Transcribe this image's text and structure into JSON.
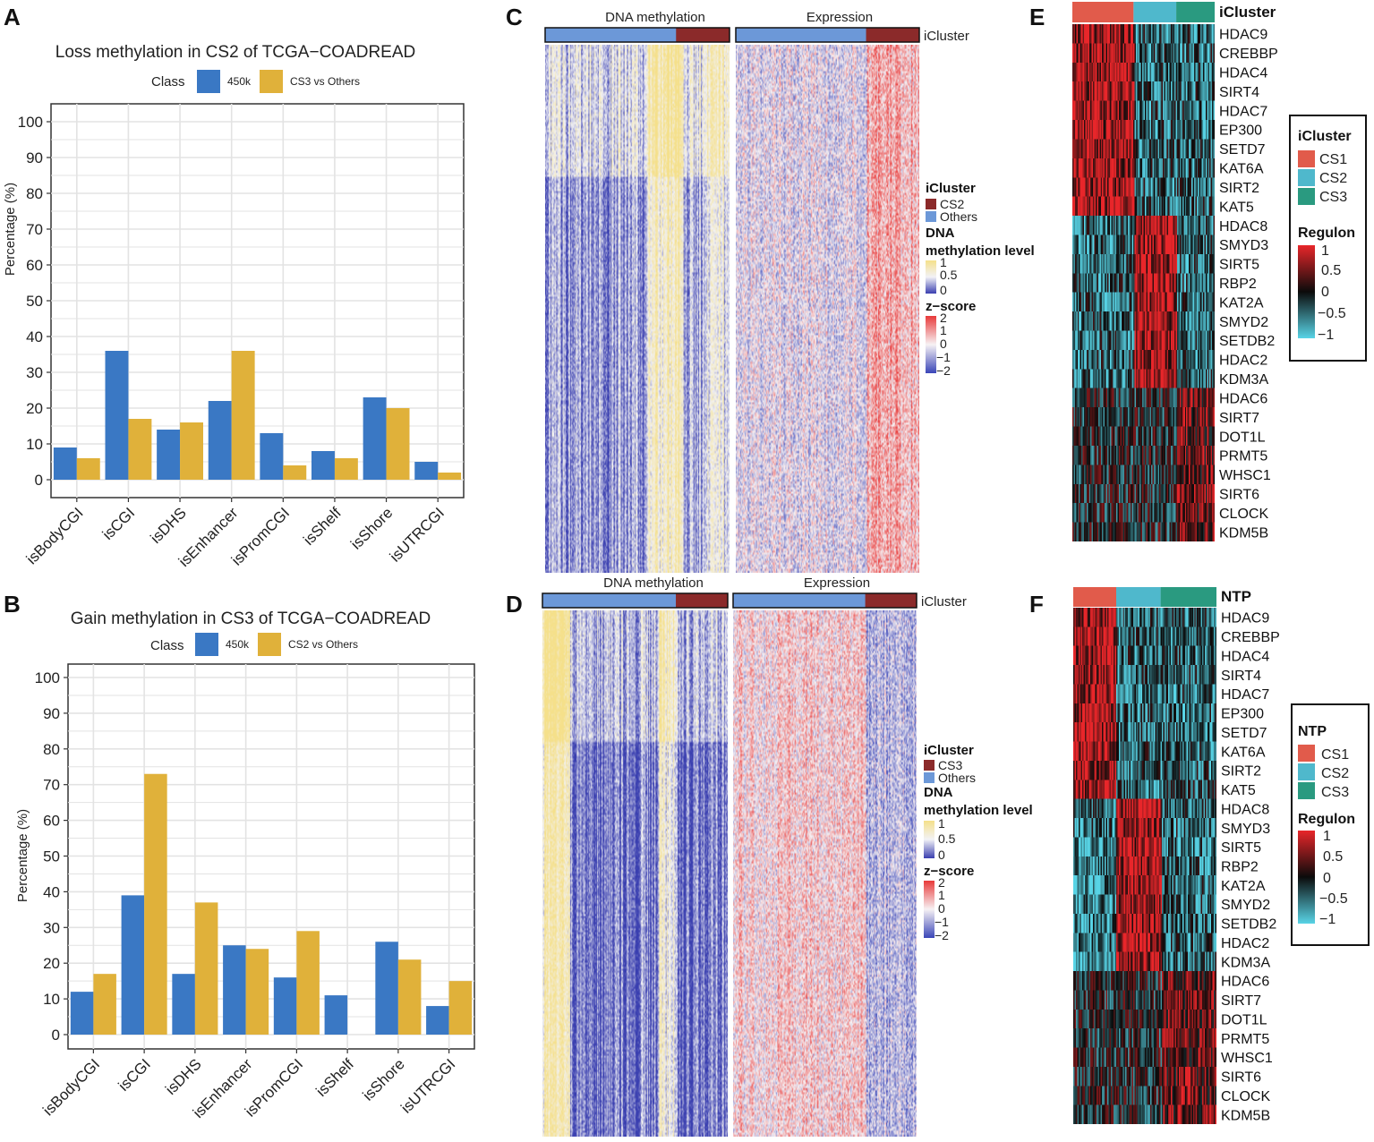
{
  "panels": {
    "A": "A",
    "B": "B",
    "C": "C",
    "D": "D",
    "E": "E",
    "F": "F"
  },
  "chart_data": [
    {
      "id": "A",
      "type": "bar",
      "title": "Loss methylation in CS2 of TCGA−COADREAD",
      "legend_title": "Class",
      "categories": [
        "isBodyCGI",
        "isCGI",
        "isDHS",
        "isEnhancer",
        "isPromCGI",
        "isShelf",
        "isShore",
        "isUTRCGI"
      ],
      "series": [
        {
          "name": "450k",
          "color": "#3a78c4",
          "values": [
            9,
            36,
            14,
            22,
            13,
            8,
            23,
            5
          ]
        },
        {
          "name": "CS3 vs Others",
          "color": "#e0b13a",
          "values": [
            6,
            17,
            16,
            36,
            4,
            6,
            20,
            2
          ]
        }
      ],
      "ylabel": "Percentage (%)",
      "yticks": [
        "0",
        "10",
        "20",
        "30",
        "40",
        "50",
        "60",
        "70",
        "80",
        "90",
        "100"
      ],
      "ylim": [
        0,
        100
      ],
      "grid": true
    },
    {
      "id": "B",
      "type": "bar",
      "title": "Gain methylation in CS3 of TCGA−COADREAD",
      "legend_title": "Class",
      "categories": [
        "isBodyCGI",
        "isCGI",
        "isDHS",
        "isEnhancer",
        "isPromCGI",
        "isShelf",
        "isShore",
        "isUTRCGI"
      ],
      "series": [
        {
          "name": "450k",
          "color": "#3a78c4",
          "values": [
            12,
            39,
            17,
            25,
            16,
            11,
            26,
            8
          ]
        },
        {
          "name": "CS2 vs Others",
          "color": "#e0b13a",
          "values": [
            17,
            73,
            37,
            24,
            29,
            0,
            21,
            15
          ]
        }
      ],
      "ylabel": "Percentage (%)",
      "yticks": [
        "0",
        "10",
        "20",
        "30",
        "40",
        "50",
        "60",
        "70",
        "80",
        "90",
        "100"
      ],
      "ylim": [
        0,
        100
      ],
      "grid": true
    },
    {
      "id": "C",
      "type": "heatmap",
      "col_titles": [
        "DNA methylation",
        "Expression"
      ],
      "annotation_label": "iCluster",
      "legend": {
        "group_title": "iCluster",
        "groups": [
          {
            "name": "CS2",
            "color": "#8b2a2a"
          },
          {
            "name": "Others",
            "color": "#6c98d8"
          }
        ],
        "meth_title_1": "DNA",
        "meth_title_2": "methylation level",
        "meth_ticks": [
          "1",
          "0.5",
          "0"
        ],
        "z_title": "z−score",
        "z_ticks": [
          "2",
          "1",
          "0",
          "−1",
          "−2"
        ]
      }
    },
    {
      "id": "D",
      "type": "heatmap",
      "col_titles": [
        "DNA methylation",
        "Expression"
      ],
      "annotation_label": "iCluster",
      "legend": {
        "group_title": "iCluster",
        "groups": [
          {
            "name": "CS3",
            "color": "#8b2a2a"
          },
          {
            "name": "Others",
            "color": "#6c98d8"
          }
        ],
        "meth_title_1": "DNA",
        "meth_title_2": "methylation level",
        "meth_ticks": [
          "1",
          "0.5",
          "0"
        ],
        "z_title": "z−score",
        "z_ticks": [
          "2",
          "1",
          "0",
          "−1",
          "−2"
        ]
      }
    },
    {
      "id": "E",
      "type": "heatmap",
      "annotation_label": "iCluster",
      "rows": [
        "HDAC9",
        "CREBBP",
        "HDAC4",
        "SIRT4",
        "HDAC7",
        "EP300",
        "SETD7",
        "KAT6A",
        "SIRT2",
        "KAT5",
        "HDAC8",
        "SMYD3",
        "SIRT5",
        "RBP2",
        "KAT2A",
        "SMYD2",
        "SETDB2",
        "HDAC2",
        "KDM3A",
        "HDAC6",
        "SIRT7",
        "DOT1L",
        "PRMT5",
        "WHSC1",
        "SIRT6",
        "CLOCK",
        "KDM5B"
      ],
      "legend": {
        "group_title": "iCluster",
        "groups": [
          {
            "name": "CS1",
            "color": "#e15b4b"
          },
          {
            "name": "CS2",
            "color": "#4fb8cc"
          },
          {
            "name": "CS3",
            "color": "#2a9a80"
          }
        ],
        "scale_title": "Regulon",
        "scale_ticks": [
          "1",
          "0.5",
          "0",
          "−0.5",
          "−1"
        ]
      }
    },
    {
      "id": "F",
      "type": "heatmap",
      "annotation_label": "NTP",
      "rows": [
        "HDAC9",
        "CREBBP",
        "HDAC4",
        "SIRT4",
        "HDAC7",
        "EP300",
        "SETD7",
        "KAT6A",
        "SIRT2",
        "KAT5",
        "HDAC8",
        "SMYD3",
        "SIRT5",
        "RBP2",
        "KAT2A",
        "SMYD2",
        "SETDB2",
        "HDAC2",
        "KDM3A",
        "HDAC6",
        "SIRT7",
        "DOT1L",
        "PRMT5",
        "WHSC1",
        "SIRT6",
        "CLOCK",
        "KDM5B"
      ],
      "legend": {
        "group_title": "NTP",
        "groups": [
          {
            "name": "CS1",
            "color": "#e15b4b"
          },
          {
            "name": "CS2",
            "color": "#4fb8cc"
          },
          {
            "name": "CS3",
            "color": "#2a9a80"
          }
        ],
        "scale_title": "Regulon",
        "scale_ticks": [
          "1",
          "0.5",
          "0",
          "−0.5",
          "−1"
        ]
      }
    }
  ]
}
